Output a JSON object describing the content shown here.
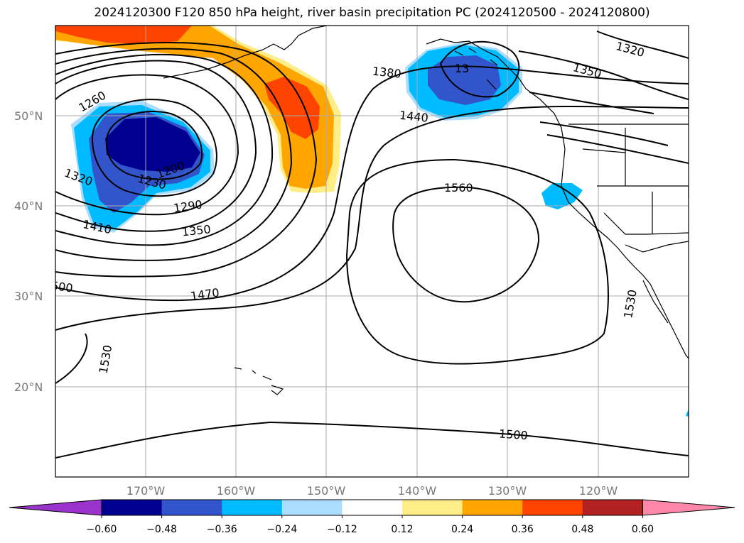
{
  "title": "2024120300 F120 850 hPa height, river basin precipitation PC (2024120500 - 2024120800)",
  "lat_labels": [
    "50°N",
    "40°N",
    "30°N",
    "20°N"
  ],
  "lon_labels": [
    "170°W",
    "160°W",
    "150°W",
    "140°W",
    "130°W",
    "120°W"
  ],
  "contour_labels": [
    "1260",
    "1320",
    "1230",
    "1200",
    "1290",
    "1410",
    "1350",
    "1470",
    "500",
    "1530",
    "1380",
    "1440",
    "1560",
    "1530",
    "1320",
    "1350",
    "1500",
    "13"
  ],
  "colorbar": {
    "ticks": [
      "−0.60",
      "−0.48",
      "−0.36",
      "−0.24",
      "−0.12",
      "0.12",
      "0.24",
      "0.36",
      "0.48",
      "0.60"
    ],
    "colors": [
      "#9933cc",
      "#000090",
      "#3355cc",
      "#00bbff",
      "#aaddff",
      "#ffffff",
      "#ffee88",
      "#ffa500",
      "#ff4400",
      "#b22222",
      "#ff88aa"
    ]
  }
}
